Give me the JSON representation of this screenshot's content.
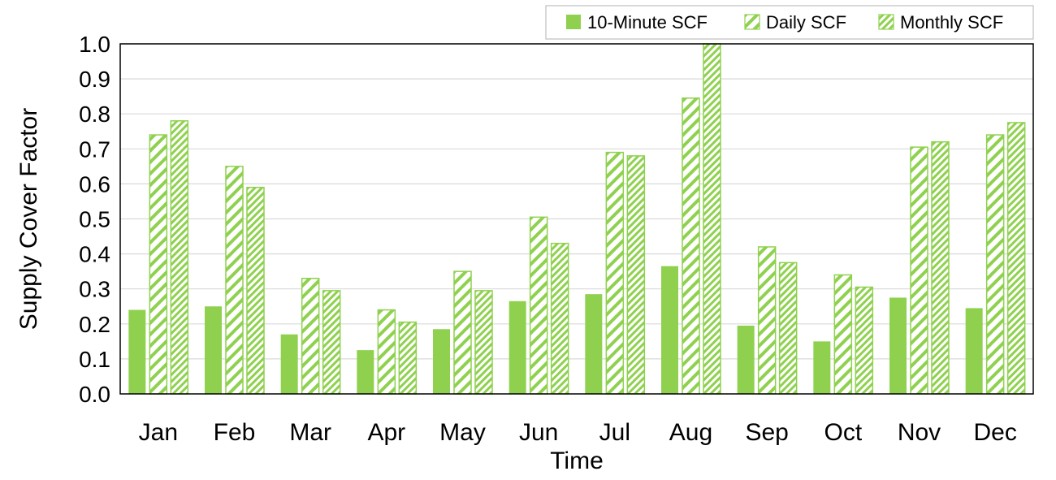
{
  "chart_data": {
    "type": "bar",
    "title": "",
    "xlabel": "Time",
    "ylabel": "Supply Cover Factor",
    "ylim": [
      0,
      1.0
    ],
    "yticks": [
      "0.0",
      "0.1",
      "0.2",
      "0.3",
      "0.4",
      "0.5",
      "0.6",
      "0.7",
      "0.8",
      "0.9",
      "1.0"
    ],
    "grid": true,
    "legend_position": "top-right",
    "categories": [
      "Jan",
      "Feb",
      "Mar",
      "Apr",
      "May",
      "Jun",
      "Jul",
      "Aug",
      "Sep",
      "Oct",
      "Nov",
      "Dec"
    ],
    "series": [
      {
        "name": "10-Minute SCF",
        "pattern": "solid",
        "values": [
          0.24,
          0.25,
          0.17,
          0.125,
          0.185,
          0.265,
          0.285,
          0.365,
          0.195,
          0.15,
          0.275,
          0.245
        ]
      },
      {
        "name": "Daily SCF",
        "pattern": "diagonal-wide",
        "values": [
          0.74,
          0.65,
          0.33,
          0.24,
          0.35,
          0.505,
          0.69,
          0.845,
          0.42,
          0.34,
          0.705,
          0.74
        ]
      },
      {
        "name": "Monthly SCF",
        "pattern": "diagonal-dense",
        "values": [
          0.78,
          0.59,
          0.295,
          0.205,
          0.295,
          0.43,
          0.68,
          1.0,
          0.375,
          0.305,
          0.72,
          0.775
        ]
      }
    ],
    "colors": {
      "bar": "#8fd14f",
      "frame": "#000000",
      "grid": "#d9d9d9"
    }
  }
}
